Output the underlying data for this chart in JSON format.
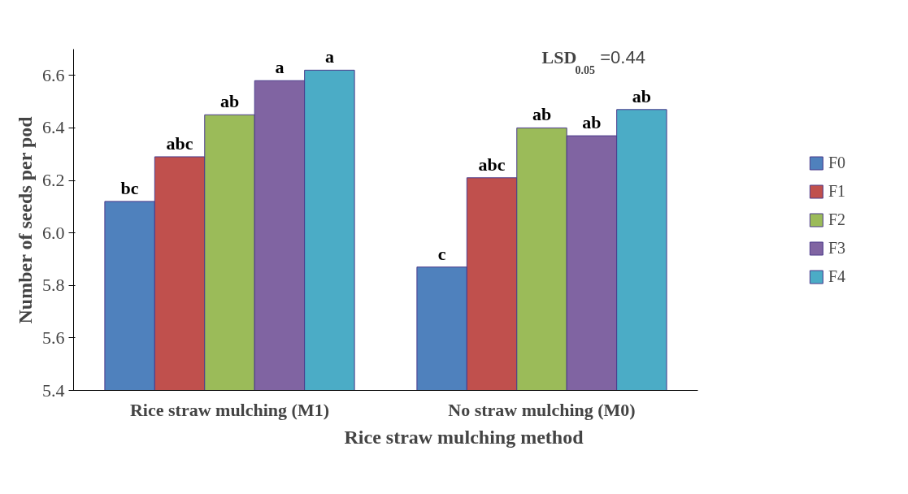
{
  "chart_data": {
    "type": "bar",
    "xlabel": "Rice straw mulching method",
    "ylabel": "Number of seeds per pod",
    "categories": [
      "Rice straw mulching (M1)",
      "No straw mulching (M0)"
    ],
    "series": [
      {
        "name": "F0",
        "color": "#4f81bd",
        "values": [
          6.12,
          5.87
        ],
        "value_labels": [
          "bc",
          "c"
        ]
      },
      {
        "name": "F1",
        "color": "#c0504d",
        "values": [
          6.29,
          6.21
        ],
        "value_labels": [
          "abc",
          "abc"
        ]
      },
      {
        "name": "F2",
        "color": "#9bbb59",
        "values": [
          6.45,
          6.4
        ],
        "value_labels": [
          "ab",
          "ab"
        ]
      },
      {
        "name": "F3",
        "color": "#8064a2",
        "values": [
          6.58,
          6.37
        ],
        "value_labels": [
          "a",
          "ab"
        ]
      },
      {
        "name": "F4",
        "color": "#4bacc6",
        "values": [
          6.62,
          6.47
        ],
        "value_labels": [
          "a",
          "ab"
        ]
      }
    ],
    "ylim": [
      5.4,
      6.7
    ],
    "yticks": [
      5.4,
      5.6,
      5.8,
      {
        "value": 6,
        "label": "6.0"
      },
      6.2,
      6.4,
      6.6
    ],
    "grid": false,
    "legend": "right",
    "annotations": [
      "LSD$_{0.05}$ =0.44"
    ]
  }
}
